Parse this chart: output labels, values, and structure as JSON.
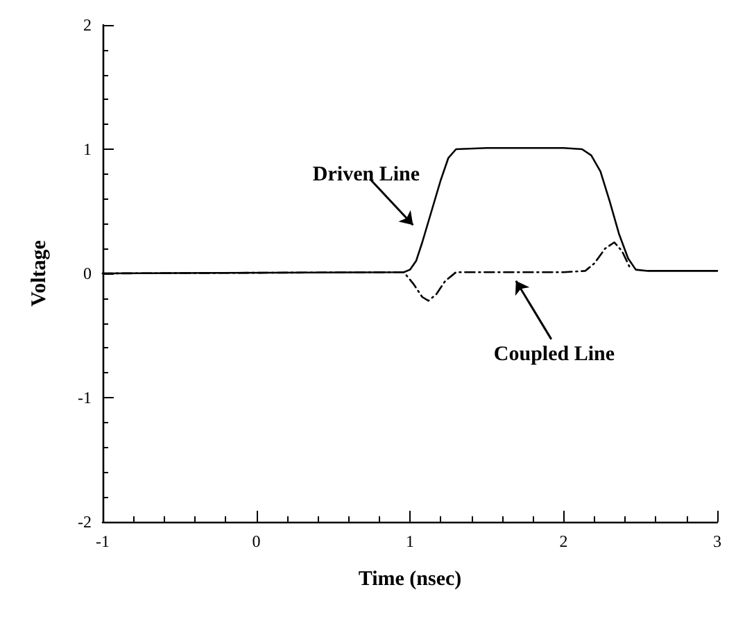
{
  "chart_data": {
    "type": "line",
    "xlabel": "Time (nsec)",
    "ylabel": "Voltage",
    "xlim": [
      -1,
      3
    ],
    "xticks": [
      -1,
      0,
      1,
      2,
      3
    ],
    "ylim": [
      -2,
      2
    ],
    "yticks": [
      -2,
      -1,
      0,
      1,
      2
    ],
    "grid": false,
    "marker": "none",
    "series": [
      {
        "color": "#000000",
        "line_style": "solid",
        "x": [
          -1,
          0.96,
          1.0,
          1.04,
          1.08,
          1.14,
          1.2,
          1.25,
          1.3,
          1.5,
          2.0,
          2.12,
          2.18,
          2.24,
          2.3,
          2.36,
          2.42,
          2.47,
          2.55,
          3.0
        ],
        "values": [
          0,
          0.01,
          0.03,
          0.1,
          0.25,
          0.5,
          0.75,
          0.93,
          1.0,
          1.01,
          1.01,
          1.0,
          0.95,
          0.82,
          0.58,
          0.32,
          0.12,
          0.03,
          0.02,
          0.02
        ]
      },
      {
        "color": "#000000",
        "line_style": "dashed",
        "x": [
          -1,
          0.96,
          1.02,
          1.08,
          1.12,
          1.17,
          1.23,
          1.3,
          1.5,
          2.0,
          2.14,
          2.2,
          2.27,
          2.33,
          2.38,
          2.43
        ],
        "values": [
          0,
          0.01,
          -0.08,
          -0.19,
          -0.22,
          -0.17,
          -0.06,
          0.01,
          0.01,
          0.01,
          0.02,
          0.08,
          0.2,
          0.25,
          0.18,
          0.05
        ]
      }
    ],
    "annotations": [
      "Driven Line",
      "Coupled Line"
    ]
  }
}
